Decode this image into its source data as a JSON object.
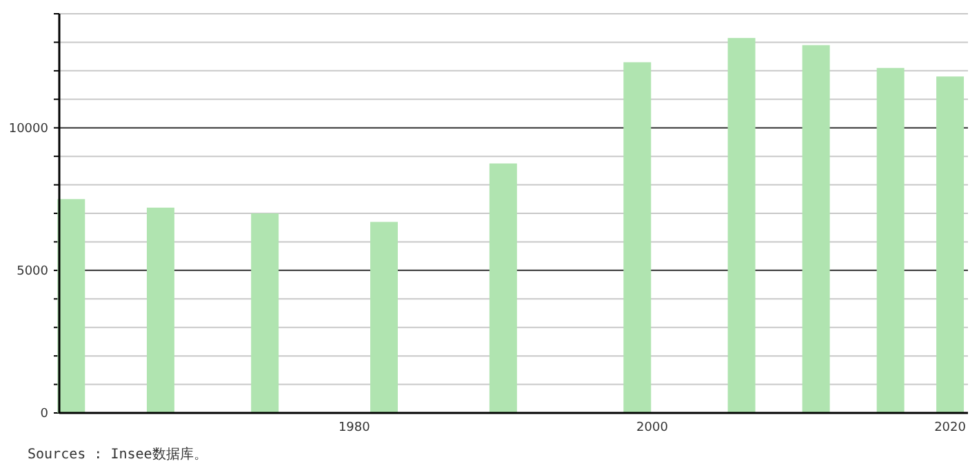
{
  "chart_data": {
    "type": "bar",
    "x": [
      1961,
      1967,
      1974,
      1982,
      1990,
      1999,
      2006,
      2011,
      2016,
      2020
    ],
    "values": [
      7500,
      7200,
      7000,
      6700,
      8750,
      12300,
      13150,
      12900,
      12100,
      11800
    ],
    "color": "#b0e4b0",
    "xlim": [
      1960.2,
      2021.2
    ],
    "ylim": [
      0,
      14000
    ],
    "xticks": [
      1980,
      2000,
      2020
    ],
    "yticks": [
      0,
      {
        "value": 1000,
        "label": null
      },
      {
        "value": 2000,
        "label": null
      },
      {
        "value": 3000,
        "label": null
      },
      {
        "value": 4000,
        "label": null
      },
      5000,
      {
        "value": 6000,
        "label": null
      },
      {
        "value": 7000,
        "label": null
      },
      {
        "value": 8000,
        "label": null
      },
      {
        "value": 9000,
        "label": null
      },
      10000,
      {
        "value": 11000,
        "label": null
      },
      {
        "value": 12000,
        "label": null
      },
      {
        "value": 13000,
        "label": null
      },
      {
        "value": 14000,
        "label": null
      }
    ],
    "grid": true,
    "annotations": [
      "Sources : Insee数据库。"
    ]
  }
}
